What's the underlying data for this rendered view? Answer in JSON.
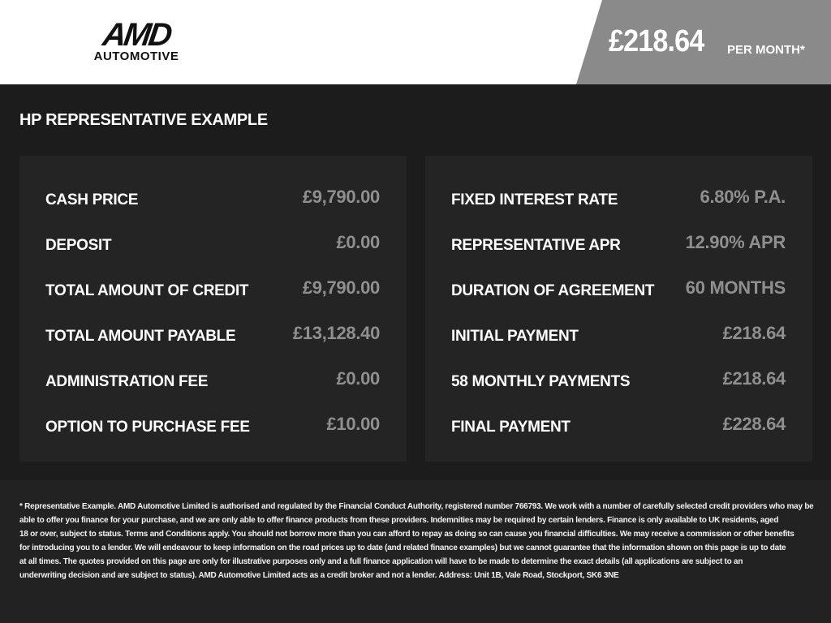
{
  "header": {
    "logo_main": "AMD",
    "logo_sub": "AUTOMOTIVE",
    "monthly_price": "£218.64",
    "per_month_label": "PER MONTH*"
  },
  "section_title": "HP REPRESENTATIVE EXAMPLE",
  "left_rows": [
    {
      "label": "CASH PRICE",
      "value": "£9,790.00"
    },
    {
      "label": "DEPOSIT",
      "value": "£0.00"
    },
    {
      "label": "TOTAL AMOUNT OF CREDIT",
      "value": "£9,790.00"
    },
    {
      "label": "TOTAL AMOUNT PAYABLE",
      "value": "£13,128.40"
    },
    {
      "label": "ADMINISTRATION FEE",
      "value": "£0.00"
    },
    {
      "label": "OPTION TO PURCHASE FEE",
      "value": "£10.00"
    }
  ],
  "right_rows": [
    {
      "label": "FIXED INTEREST RATE",
      "value": "6.80% P.A."
    },
    {
      "label": "REPRESENTATIVE APR",
      "value": "12.90% APR"
    },
    {
      "label": "DURATION OF AGREEMENT",
      "value": "60 MONTHS"
    },
    {
      "label": "INITIAL PAYMENT",
      "value": "£218.64"
    },
    {
      "label": "58 MONTHLY PAYMENTS",
      "value": "£218.64"
    },
    {
      "label": "FINAL PAYMENT",
      "value": "£228.64"
    }
  ],
  "disclaimer_lines": [
    "* Representative Example. AMD Automotive Limited is authorised and regulated by the Financial Conduct Authority, registered number 766793. We work with a number of carefully selected credit providers who may be",
    "able to offer you finance for your purchase, and we are only able to offer finance products from these providers. Indemnities may be required by certain lenders. Finance is only available to UK residents, aged",
    "18 or over, subject to status. Terms and Conditions apply. You should not borrow more than you can afford to repay as doing so can cause you financial difficulties. We may receive a commission or other benefits",
    "for introducing you to a lender. We will endeavour to keep information on the road prices up to date (and related finance examples) but we cannot guarantee that the information shown on this page is up to date",
    "at all times. The quotes provided on this page are only for illustrative purposes only and a full finance application will have to be made to determine the exact details (all applications are subject to an",
    "underwriting decision and are subject to status). AMD Automotive Limited acts as a credit broker and not a lender. Address: Unit 1B, Vale Road, Stockport, SK6 3NE"
  ]
}
